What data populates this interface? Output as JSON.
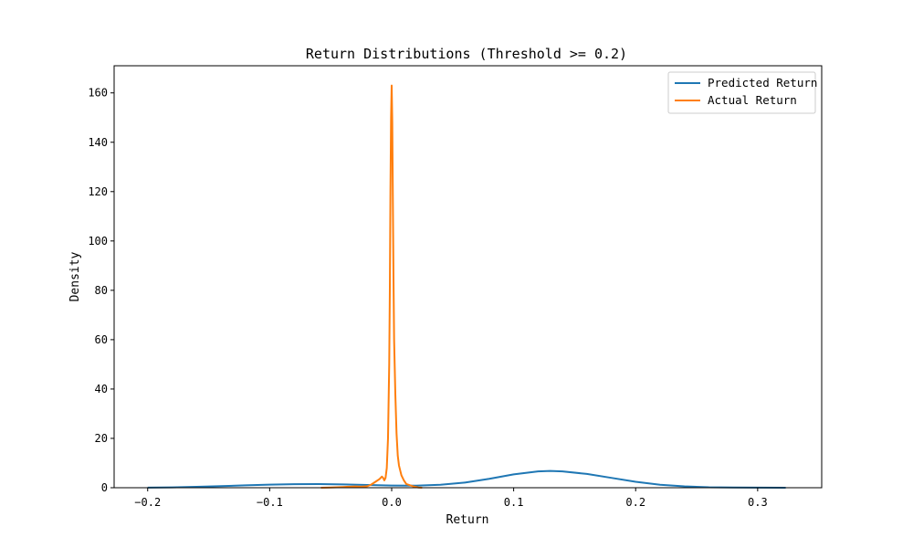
{
  "chart_data": {
    "type": "line",
    "title": "Return Distributions (Threshold >= 0.2)",
    "xlabel": "Return",
    "ylabel": "Density",
    "xlim": [
      -0.2275,
      0.3525
    ],
    "ylim": [
      0,
      171
    ],
    "x_ticks": [
      -0.2,
      -0.1,
      0.0,
      0.1,
      0.2,
      0.3
    ],
    "x_tick_labels": [
      "−0.2",
      "−0.1",
      "0.0",
      "0.1",
      "0.2",
      "0.3"
    ],
    "y_ticks": [
      0,
      20,
      40,
      60,
      80,
      100,
      120,
      140,
      160
    ],
    "y_tick_labels": [
      "0",
      "20",
      "40",
      "60",
      "80",
      "100",
      "120",
      "140",
      "160"
    ],
    "grid": false,
    "legend_placement": "top-right",
    "series": [
      {
        "name": "Predicted Return",
        "color": "#1f77b4",
        "points": [
          [
            -0.2,
            0.05
          ],
          [
            -0.18,
            0.15
          ],
          [
            -0.16,
            0.35
          ],
          [
            -0.14,
            0.65
          ],
          [
            -0.12,
            0.95
          ],
          [
            -0.1,
            1.25
          ],
          [
            -0.08,
            1.45
          ],
          [
            -0.06,
            1.5
          ],
          [
            -0.04,
            1.35
          ],
          [
            -0.02,
            1.1
          ],
          [
            0.0,
            0.9
          ],
          [
            0.02,
            0.85
          ],
          [
            0.04,
            1.2
          ],
          [
            0.06,
            2.1
          ],
          [
            0.08,
            3.6
          ],
          [
            0.1,
            5.4
          ],
          [
            0.12,
            6.6
          ],
          [
            0.13,
            6.8
          ],
          [
            0.14,
            6.6
          ],
          [
            0.16,
            5.6
          ],
          [
            0.18,
            4.0
          ],
          [
            0.2,
            2.4
          ],
          [
            0.22,
            1.2
          ],
          [
            0.24,
            0.55
          ],
          [
            0.26,
            0.2
          ],
          [
            0.28,
            0.08
          ],
          [
            0.3,
            0.03
          ],
          [
            0.323,
            0.01
          ]
        ]
      },
      {
        "name": "Actual Return",
        "color": "#ff7f0e",
        "points": [
          [
            -0.058,
            0.0
          ],
          [
            -0.05,
            0.1
          ],
          [
            -0.04,
            0.3
          ],
          [
            -0.03,
            0.5
          ],
          [
            -0.025,
            0.4
          ],
          [
            -0.02,
            0.6
          ],
          [
            -0.017,
            1.2
          ],
          [
            -0.013,
            2.5
          ],
          [
            -0.01,
            3.5
          ],
          [
            -0.008,
            4.5
          ],
          [
            -0.007,
            4.0
          ],
          [
            -0.006,
            3.0
          ],
          [
            -0.005,
            4.0
          ],
          [
            -0.004,
            8.0
          ],
          [
            -0.003,
            20.0
          ],
          [
            -0.002,
            50.0
          ],
          [
            -0.0015,
            80.0
          ],
          [
            -0.001,
            120.0
          ],
          [
            -0.0005,
            150.0
          ],
          [
            0.0,
            163.0
          ],
          [
            0.0005,
            148.0
          ],
          [
            0.001,
            115.0
          ],
          [
            0.0015,
            85.0
          ],
          [
            0.002,
            60.0
          ],
          [
            0.003,
            38.0
          ],
          [
            0.004,
            22.0
          ],
          [
            0.005,
            13.0
          ],
          [
            0.006,
            9.0
          ],
          [
            0.008,
            5.0
          ],
          [
            0.01,
            3.0
          ],
          [
            0.012,
            1.5
          ],
          [
            0.015,
            1.0
          ],
          [
            0.018,
            0.5
          ],
          [
            0.022,
            0.1
          ],
          [
            0.025,
            0.0
          ]
        ]
      }
    ]
  }
}
